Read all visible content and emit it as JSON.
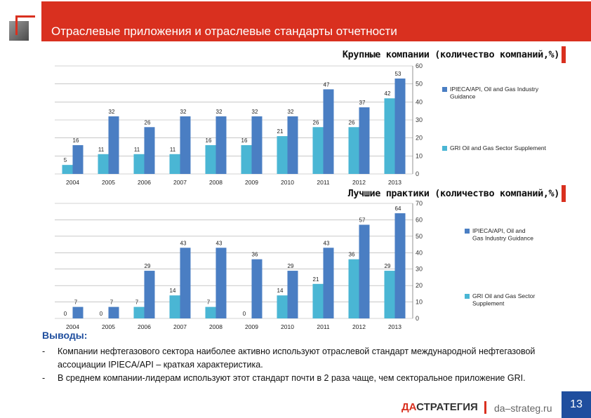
{
  "header": {
    "title": "Отраслевые приложения и отраслевые стандарты отчетности"
  },
  "chart_data": [
    {
      "type": "bar",
      "title": "Крупные компании (количество компаний,%)",
      "categories": [
        "2004",
        "2005",
        "2006",
        "2007",
        "2008",
        "2009",
        "2010",
        "2011",
        "2012",
        "2013"
      ],
      "series": [
        {
          "name": "GRI Oil and Gas Sector Supplement",
          "color": "#4ab6d4",
          "values": [
            5,
            11,
            11,
            11,
            16,
            16,
            21,
            26,
            26,
            42
          ]
        },
        {
          "name": "IPIECA/API, Oil and Gas Industry Guidance",
          "color": "#4a7ec3",
          "values": [
            16,
            32,
            26,
            32,
            32,
            32,
            32,
            47,
            37,
            53
          ]
        }
      ],
      "ylim": [
        0,
        60
      ],
      "yticks": [
        0,
        10,
        20,
        30,
        40,
        50,
        60
      ],
      "legend_order": [
        1,
        0
      ],
      "legend": "right",
      "grid": true
    },
    {
      "type": "bar",
      "title": "Лучшие практики (количество компаний,%)",
      "categories": [
        "2004",
        "2005",
        "2006",
        "2007",
        "2008",
        "2009",
        "2010",
        "2011",
        "2012",
        "2013"
      ],
      "series": [
        {
          "name": "GRI Oil and Gas Sector Supplement",
          "color": "#4ab6d4",
          "values": [
            0,
            0,
            7,
            14,
            7,
            0,
            14,
            21,
            36,
            29
          ]
        },
        {
          "name": "IPIECA/API, Oil and Gas Industry Guidance",
          "color": "#4a7ec3",
          "values": [
            7,
            7,
            29,
            43,
            43,
            36,
            29,
            43,
            57,
            64
          ]
        }
      ],
      "ylim": [
        0,
        70
      ],
      "yticks": [
        0,
        10,
        20,
        30,
        40,
        50,
        60,
        70
      ],
      "legend_order": [
        1,
        0
      ],
      "legend": "right",
      "grid": true
    }
  ],
  "conclusions": {
    "title": "Выводы:",
    "items": [
      {
        "bullet": "-",
        "text": "Компании нефтегазового сектора наиболее активно используют отраслевой стандарт международной нефтегазовой ассоциации IPIECA/API – краткая характеристика."
      },
      {
        "bullet": "-",
        "text": "В среднем компании-лидерам используют этот стандарт почти в 2 раза чаще, чем секторальное приложение GRI."
      }
    ]
  },
  "footer": {
    "brand_a": "ДА",
    "brand_b": "СТРАТЕГИЯ",
    "site": "da–strateg.ru",
    "page": "13"
  }
}
